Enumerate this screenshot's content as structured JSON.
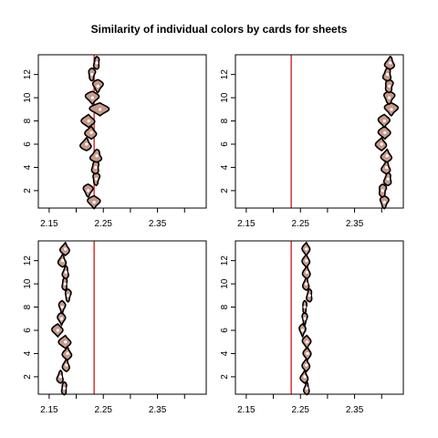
{
  "title": "Similarity of individual colors by cards for sheets",
  "colors": {
    "violin_fill": "#c8998a",
    "violin_stroke": "#000000",
    "reference_line": "#cc0000",
    "median_point": "#ffffff"
  },
  "chart_data": [
    {
      "type": "violin",
      "panel": "top-left",
      "xlim": [
        2.13,
        2.44
      ],
      "ylim": [
        0.5,
        13.7
      ],
      "x_ticks": [
        2.15,
        2.2,
        2.25,
        2.3,
        2.35,
        2.4
      ],
      "x_tick_labels": [
        "2.15",
        "2.25",
        "2.35"
      ],
      "y_ticks": [
        2,
        4,
        6,
        8,
        10,
        12
      ],
      "reference_x": 2.233,
      "series": [
        {
          "y": 1,
          "center": 2.233,
          "halfwidth": 0.013
        },
        {
          "y": 2,
          "center": 2.222,
          "halfwidth": 0.012
        },
        {
          "y": 3,
          "center": 2.237,
          "halfwidth": 0.011
        },
        {
          "y": 4,
          "center": 2.236,
          "halfwidth": 0.013
        },
        {
          "y": 5,
          "center": 2.238,
          "halfwidth": 0.016
        },
        {
          "y": 6,
          "center": 2.219,
          "halfwidth": 0.012
        },
        {
          "y": 7,
          "center": 2.228,
          "halfwidth": 0.011
        },
        {
          "y": 8,
          "center": 2.223,
          "halfwidth": 0.012
        },
        {
          "y": 9,
          "center": 2.244,
          "halfwidth": 0.018
        },
        {
          "y": 10,
          "center": 2.23,
          "halfwidth": 0.014
        },
        {
          "y": 11,
          "center": 2.24,
          "halfwidth": 0.013
        },
        {
          "y": 12,
          "center": 2.229,
          "halfwidth": 0.011
        },
        {
          "y": 13,
          "center": 2.238,
          "halfwidth": 0.01
        }
      ]
    },
    {
      "type": "violin",
      "panel": "top-right",
      "xlim": [
        2.13,
        2.44
      ],
      "ylim": [
        0.5,
        13.7
      ],
      "x_ticks": [
        2.15,
        2.2,
        2.25,
        2.3,
        2.35,
        2.4
      ],
      "x_tick_labels": [
        "2.15",
        "2.25",
        "2.35"
      ],
      "y_ticks": [
        2,
        4,
        6,
        8,
        10,
        12
      ],
      "reference_x": 2.233,
      "series": [
        {
          "y": 1,
          "center": 2.405,
          "halfwidth": 0.012
        },
        {
          "y": 2,
          "center": 2.402,
          "halfwidth": 0.013
        },
        {
          "y": 3,
          "center": 2.412,
          "halfwidth": 0.012
        },
        {
          "y": 4,
          "center": 2.409,
          "halfwidth": 0.011
        },
        {
          "y": 5,
          "center": 2.41,
          "halfwidth": 0.011
        },
        {
          "y": 6,
          "center": 2.4,
          "halfwidth": 0.01
        },
        {
          "y": 7,
          "center": 2.406,
          "halfwidth": 0.011
        },
        {
          "y": 8,
          "center": 2.405,
          "halfwidth": 0.011
        },
        {
          "y": 9,
          "center": 2.418,
          "halfwidth": 0.015
        },
        {
          "y": 10,
          "center": 2.414,
          "halfwidth": 0.015
        },
        {
          "y": 11,
          "center": 2.414,
          "halfwidth": 0.014
        },
        {
          "y": 12,
          "center": 2.411,
          "halfwidth": 0.013
        },
        {
          "y": 13,
          "center": 2.416,
          "halfwidth": 0.012
        }
      ]
    },
    {
      "type": "violin",
      "panel": "bottom-left",
      "xlim": [
        2.13,
        2.44
      ],
      "ylim": [
        0.5,
        13.7
      ],
      "x_ticks": [
        2.15,
        2.2,
        2.25,
        2.3,
        2.35,
        2.4
      ],
      "x_tick_labels": [
        "2.15",
        "2.25",
        "2.35"
      ],
      "y_ticks": [
        2,
        4,
        6,
        8,
        10,
        12
      ],
      "reference_x": 2.233,
      "series": [
        {
          "y": 1,
          "center": 2.178,
          "halfwidth": 0.009
        },
        {
          "y": 2,
          "center": 2.171,
          "halfwidth": 0.009
        },
        {
          "y": 3,
          "center": 2.182,
          "halfwidth": 0.008
        },
        {
          "y": 4,
          "center": 2.184,
          "halfwidth": 0.009
        },
        {
          "y": 5,
          "center": 2.18,
          "halfwidth": 0.011
        },
        {
          "y": 6,
          "center": 2.166,
          "halfwidth": 0.01
        },
        {
          "y": 7,
          "center": 2.173,
          "halfwidth": 0.008
        },
        {
          "y": 8,
          "center": 2.174,
          "halfwidth": 0.008
        },
        {
          "y": 9,
          "center": 2.185,
          "halfwidth": 0.009
        },
        {
          "y": 10,
          "center": 2.179,
          "halfwidth": 0.009
        },
        {
          "y": 11,
          "center": 2.181,
          "halfwidth": 0.009
        },
        {
          "y": 12,
          "center": 2.175,
          "halfwidth": 0.009
        },
        {
          "y": 13,
          "center": 2.18,
          "halfwidth": 0.009
        }
      ]
    },
    {
      "type": "violin",
      "panel": "bottom-right",
      "xlim": [
        2.13,
        2.44
      ],
      "ylim": [
        0.5,
        13.7
      ],
      "x_ticks": [
        2.15,
        2.2,
        2.25,
        2.3,
        2.35,
        2.4
      ],
      "x_tick_labels": [
        "2.15",
        "2.25",
        "2.35"
      ],
      "y_ticks": [
        2,
        4,
        6,
        8,
        10,
        12
      ],
      "reference_x": 2.233,
      "series": [
        {
          "y": 1,
          "center": 2.262,
          "halfwidth": 0.007
        },
        {
          "y": 2,
          "center": 2.258,
          "halfwidth": 0.008
        },
        {
          "y": 3,
          "center": 2.261,
          "halfwidth": 0.007
        },
        {
          "y": 4,
          "center": 2.263,
          "halfwidth": 0.007
        },
        {
          "y": 5,
          "center": 2.262,
          "halfwidth": 0.008
        },
        {
          "y": 6,
          "center": 2.254,
          "halfwidth": 0.007
        },
        {
          "y": 7,
          "center": 2.258,
          "halfwidth": 0.007
        },
        {
          "y": 8,
          "center": 2.258,
          "halfwidth": 0.007
        },
        {
          "y": 9,
          "center": 2.267,
          "halfwidth": 0.009
        },
        {
          "y": 10,
          "center": 2.261,
          "halfwidth": 0.008
        },
        {
          "y": 11,
          "center": 2.262,
          "halfwidth": 0.008
        },
        {
          "y": 12,
          "center": 2.261,
          "halfwidth": 0.007
        },
        {
          "y": 13,
          "center": 2.261,
          "halfwidth": 0.007
        }
      ]
    }
  ]
}
